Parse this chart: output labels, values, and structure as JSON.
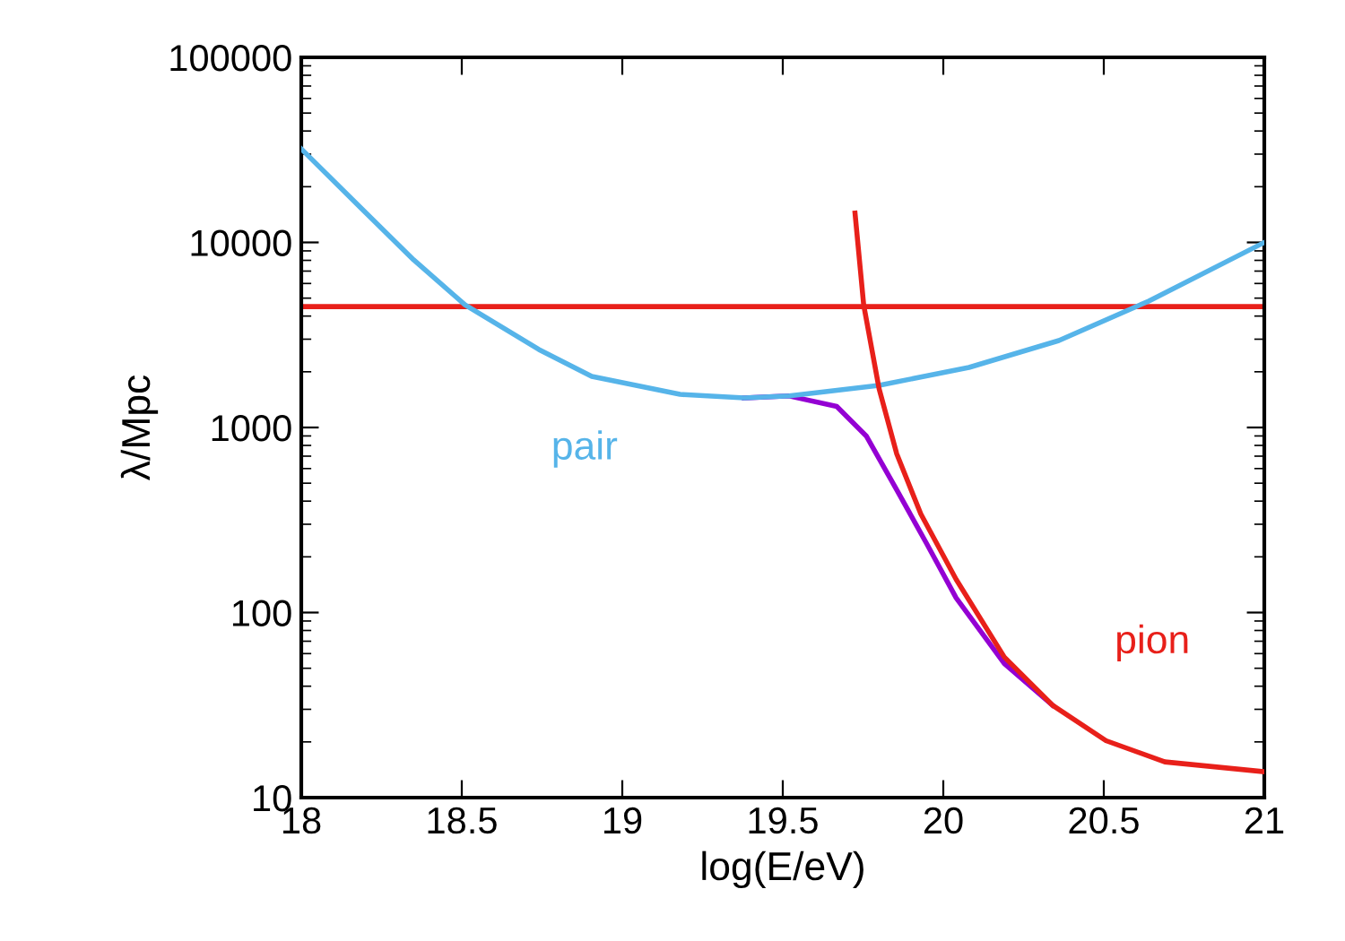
{
  "chart_data": {
    "type": "line",
    "xlabel": "log(E/eV)",
    "ylabel": "λ/Mpc",
    "log": "y",
    "xlim": [
      18,
      21
    ],
    "xticks": [
      {
        "value": 18,
        "label": "18"
      },
      {
        "value": 18.5,
        "label": "18.5"
      },
      {
        "value": 19,
        "label": "19"
      },
      {
        "value": 19.5,
        "label": "19.5"
      },
      {
        "value": 20,
        "label": "20"
      },
      {
        "value": 20.5,
        "label": "20.5"
      },
      {
        "value": 21,
        "label": "21"
      }
    ],
    "ylim": [
      10,
      100000
    ],
    "yticks": [
      10,
      100,
      1000,
      10000,
      100000
    ],
    "grid": false,
    "legend": false,
    "series": [
      {
        "color": "#9400d3",
        "x": [
          19.38,
          19.52,
          19.668,
          19.76,
          19.855,
          19.948,
          20.04,
          20.19,
          20.34
        ],
        "values": [
          1445,
          1480,
          1300,
          900,
          460,
          236,
          120,
          53,
          31.6
        ]
      },
      {
        "name": "pair",
        "color": "#56b4e9",
        "x": [
          18,
          18.18,
          18.35,
          18.51,
          18.74,
          18.905,
          19.18,
          19.38,
          19.52,
          19.8,
          20.08,
          20.36,
          20.64,
          21
        ],
        "values": [
          32000,
          15700,
          8050,
          4600,
          2640,
          1890,
          1510,
          1445,
          1480,
          1690,
          2110,
          2950,
          4820,
          10000
        ]
      },
      {
        "name": "pion",
        "color": "#e8201a",
        "x": [
          19.725,
          19.752,
          19.8,
          19.855,
          19.93,
          20.04,
          20.19,
          20.34,
          20.507,
          20.69,
          21
        ],
        "values": [
          14400,
          4600,
          1620,
          720,
          341,
          151,
          57.5,
          31.6,
          20.3,
          15.6,
          13.8
        ]
      }
    ],
    "ref_lines": [
      {
        "axis": "y",
        "value": 4500,
        "color": "#e8201a"
      }
    ]
  }
}
